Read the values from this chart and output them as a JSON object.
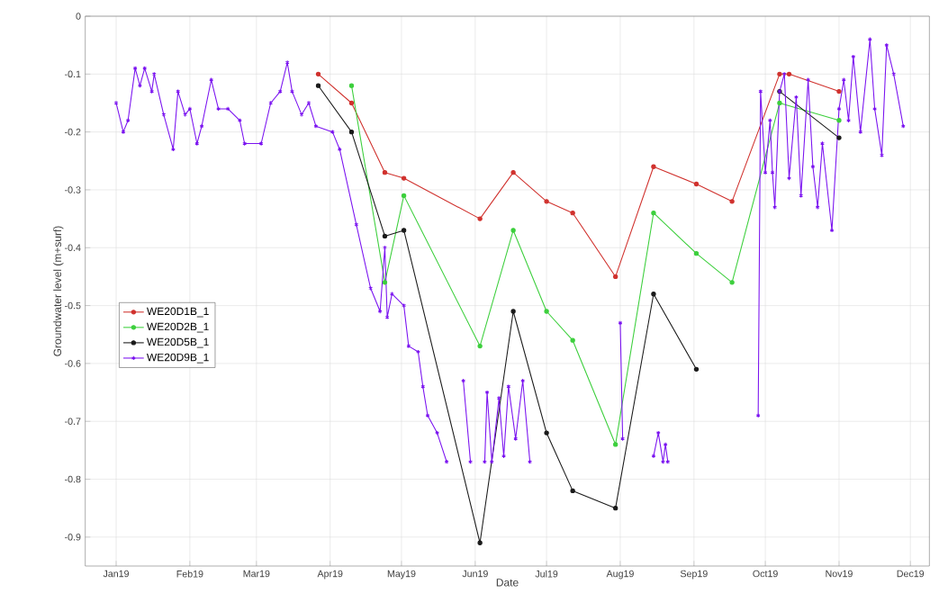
{
  "chart_data": {
    "type": "line",
    "xlabel": "Date",
    "ylabel": "Groundwater level (m+surf)",
    "xlim": [
      "2018-12-19",
      "2019-12-09"
    ],
    "ylim": [
      -0.95,
      0
    ],
    "xticks": [
      {
        "value": "2019-01-01",
        "label": "Jan19"
      },
      {
        "value": "2019-02-01",
        "label": "Feb19"
      },
      {
        "value": "2019-03-01",
        "label": "Mar19"
      },
      {
        "value": "2019-04-01",
        "label": "Apr19"
      },
      {
        "value": "2019-05-01",
        "label": "May19"
      },
      {
        "value": "2019-06-01",
        "label": "Jun19"
      },
      {
        "value": "2019-07-01",
        "label": "Jul19"
      },
      {
        "value": "2019-08-01",
        "label": "Aug19"
      },
      {
        "value": "2019-09-01",
        "label": "Sep19"
      },
      {
        "value": "2019-10-01",
        "label": "Oct19"
      },
      {
        "value": "2019-11-01",
        "label": "Nov19"
      },
      {
        "value": "2019-12-01",
        "label": "Dec19"
      }
    ],
    "yticks": [
      0,
      -0.1,
      -0.2,
      -0.3,
      -0.4,
      -0.5,
      -0.6,
      -0.7,
      -0.8,
      -0.9
    ],
    "grid": true,
    "legend": "left",
    "line_style": "solid",
    "series": [
      {
        "name": "WE20D1B_1",
        "color": "#d0312d",
        "marker": "circle",
        "x": [
          "2019-03-27",
          "2019-04-10",
          "2019-04-24",
          "2019-05-02",
          "2019-06-03",
          "2019-06-17",
          "2019-07-01",
          "2019-07-12",
          "2019-07-30",
          "2019-08-15",
          "2019-09-02",
          "2019-09-17",
          "2019-10-07",
          "2019-10-11",
          "2019-11-01"
        ],
        "values": [
          -0.1,
          -0.15,
          -0.27,
          -0.28,
          -0.35,
          -0.27,
          -0.32,
          -0.34,
          -0.45,
          -0.26,
          -0.29,
          -0.32,
          -0.1,
          -0.1,
          -0.13
        ]
      },
      {
        "name": "WE20D2B_1",
        "color": "#3ccf3c",
        "marker": "circle",
        "x": [
          "2019-04-10",
          "2019-04-24",
          "2019-05-02",
          "2019-06-03",
          "2019-06-17",
          "2019-07-01",
          "2019-07-12",
          "2019-07-30",
          "2019-08-15",
          "2019-09-02",
          "2019-09-17",
          "2019-10-07",
          "2019-11-01"
        ],
        "values": [
          -0.12,
          -0.46,
          -0.31,
          -0.57,
          -0.37,
          -0.51,
          -0.56,
          -0.74,
          -0.34,
          -0.41,
          -0.46,
          -0.15,
          -0.18
        ]
      },
      {
        "name": "WE20D5B_1",
        "color": "#1a1a1a",
        "marker": "circle",
        "x": [
          "2019-03-27",
          "2019-04-10",
          "2019-04-24",
          "2019-05-02",
          "2019-06-03",
          "2019-06-17",
          "2019-07-01",
          "2019-07-12",
          "2019-07-30",
          "2019-08-15",
          "2019-09-02",
          "2019-09-20",
          "2019-10-07",
          "2019-11-01"
        ],
        "values": [
          -0.12,
          -0.2,
          -0.38,
          -0.37,
          -0.91,
          -0.51,
          -0.72,
          -0.82,
          -0.85,
          -0.48,
          -0.61,
          null,
          -0.13,
          -0.21
        ]
      },
      {
        "name": "WE20D9B_1",
        "color": "#7a12f0",
        "marker": "cross",
        "x": [
          "2019-01-01",
          "2019-01-04",
          "2019-01-06",
          "2019-01-09",
          "2019-01-11",
          "2019-01-13",
          "2019-01-16",
          "2019-01-17",
          "2019-01-21",
          "2019-01-25",
          "2019-01-27",
          "2019-01-30",
          "2019-02-01",
          "2019-02-04",
          "2019-02-06",
          "2019-02-10",
          "2019-02-13",
          "2019-02-17",
          "2019-02-22",
          "2019-02-24",
          "2019-03-03",
          "2019-03-07",
          "2019-03-11",
          "2019-03-14",
          "2019-03-16",
          "2019-03-20",
          "2019-03-23",
          "2019-03-26",
          "2019-04-02",
          "2019-04-05",
          "2019-04-12",
          "2019-04-18",
          "2019-04-22",
          "2019-04-24",
          "2019-04-25",
          "2019-04-27",
          "2019-05-02",
          "2019-05-04",
          "2019-05-08",
          "2019-05-10",
          "2019-05-12",
          "2019-05-16",
          "2019-05-20",
          "2019-05-23",
          "2019-05-27",
          "2019-05-30",
          "2019-06-02",
          "2019-06-05",
          "2019-06-06",
          "2019-06-08",
          "2019-06-11",
          "2019-06-13",
          "2019-06-15",
          "2019-06-18",
          "2019-06-21",
          "2019-06-24",
          "2019-07-10",
          "2019-08-01",
          "2019-08-02",
          "2019-08-08",
          "2019-08-15",
          "2019-08-17",
          "2019-08-19",
          "2019-08-20",
          "2019-08-21",
          "2019-09-10",
          "2019-09-28",
          "2019-09-29",
          "2019-10-01",
          "2019-10-03",
          "2019-10-04",
          "2019-10-05",
          "2019-10-07",
          "2019-10-09",
          "2019-10-11",
          "2019-10-14",
          "2019-10-16",
          "2019-10-19",
          "2019-10-21",
          "2019-10-23",
          "2019-10-25",
          "2019-10-29",
          "2019-11-01",
          "2019-11-03",
          "2019-11-05",
          "2019-11-07",
          "2019-11-10",
          "2019-11-14",
          "2019-11-16",
          "2019-11-19",
          "2019-11-21",
          "2019-11-24",
          "2019-11-28"
        ],
        "values": [
          -0.15,
          -0.2,
          -0.18,
          -0.09,
          -0.12,
          -0.09,
          -0.13,
          -0.1,
          -0.17,
          -0.23,
          -0.13,
          -0.17,
          -0.16,
          -0.22,
          -0.19,
          -0.11,
          -0.16,
          -0.16,
          -0.18,
          -0.22,
          -0.22,
          -0.15,
          -0.13,
          -0.08,
          -0.13,
          -0.17,
          -0.15,
          -0.19,
          -0.2,
          -0.23,
          -0.36,
          -0.47,
          -0.51,
          -0.4,
          -0.52,
          -0.48,
          -0.5,
          -0.57,
          -0.58,
          -0.64,
          -0.69,
          -0.72,
          -0.77,
          null,
          -0.63,
          -0.77,
          null,
          -0.77,
          -0.65,
          -0.77,
          -0.66,
          -0.76,
          -0.64,
          -0.73,
          -0.63,
          -0.77,
          null,
          -0.53,
          -0.73,
          null,
          -0.76,
          -0.72,
          -0.77,
          -0.74,
          -0.77,
          null,
          -0.69,
          -0.13,
          -0.27,
          -0.18,
          -0.27,
          -0.33,
          -0.13,
          -0.1,
          -0.28,
          -0.14,
          -0.31,
          -0.11,
          -0.26,
          -0.33,
          -0.22,
          -0.37,
          -0.16,
          -0.11,
          -0.18,
          -0.07,
          -0.2,
          -0.04,
          -0.16,
          -0.24,
          -0.05,
          -0.1,
          -0.19
        ]
      }
    ]
  }
}
